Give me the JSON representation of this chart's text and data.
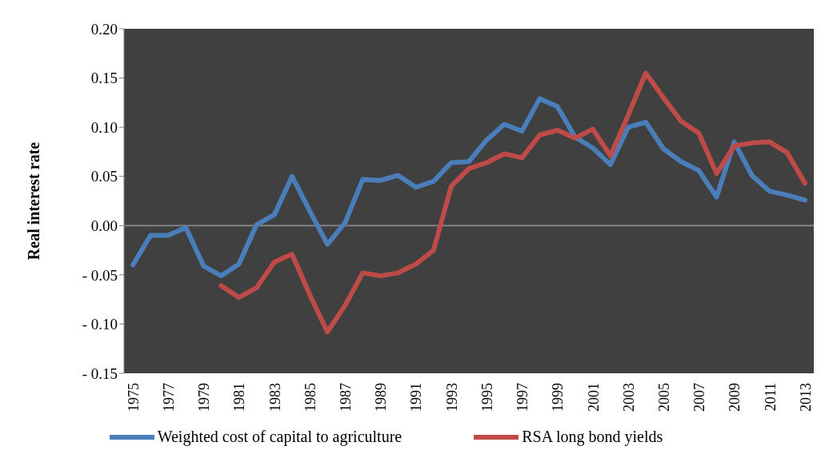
{
  "chart_data": {
    "type": "line",
    "ylabel": "Real interest rate",
    "categories": [
      "1975",
      null,
      "1977",
      null,
      "1979",
      null,
      "1981",
      null,
      "1983",
      null,
      "1985",
      null,
      "1987",
      null,
      "1989",
      null,
      "1991",
      null,
      "1993",
      null,
      "1995",
      null,
      "1997",
      null,
      "1999",
      null,
      "2001",
      null,
      "2003",
      null,
      "2005",
      null,
      "2007",
      null,
      "2009",
      null,
      "2011",
      null,
      "2013"
    ],
    "series": [
      {
        "name": "Weighted cost of capital to agriculture",
        "color": "#4a7ebb",
        "values": [
          -0.04,
          -0.01,
          -0.01,
          -0.002,
          -0.041,
          -0.051,
          -0.039,
          0.001,
          0.011,
          0.05,
          0.015,
          -0.019,
          0.003,
          0.047,
          0.046,
          0.051,
          0.039,
          0.045,
          0.064,
          0.065,
          0.087,
          0.103,
          0.096,
          0.129,
          0.121,
          0.09,
          0.079,
          0.062,
          0.1,
          0.105,
          0.078,
          0.065,
          0.056,
          0.029,
          0.085,
          0.051,
          0.035,
          0.031,
          0.026
        ]
      },
      {
        "name": "RSA long bond yields",
        "color": "#be4b48",
        "values": [
          null,
          null,
          null,
          null,
          null,
          -0.061,
          -0.073,
          -0.063,
          -0.037,
          -0.029,
          -0.07,
          -0.108,
          -0.081,
          -0.048,
          -0.051,
          -0.048,
          -0.039,
          -0.025,
          0.04,
          0.058,
          0.064,
          0.073,
          0.069,
          0.092,
          0.097,
          0.089,
          0.098,
          0.071,
          0.112,
          0.155,
          0.13,
          0.106,
          0.094,
          0.053,
          0.081,
          0.084,
          0.085,
          0.074,
          0.043
        ]
      }
    ],
    "ylim": [
      -0.15,
      0.2
    ],
    "yticks": [
      {
        "value": -0.15,
        "label": "- 0.15"
      },
      {
        "value": -0.1,
        "label": "- 0.10"
      },
      {
        "value": -0.05,
        "label": "- 0.05"
      },
      {
        "value": 0,
        "label": "0.00"
      },
      {
        "value": 0.05,
        "label": "0.05"
      },
      {
        "value": 0.1,
        "label": "0.10"
      },
      {
        "value": 0.15,
        "label": "0.15"
      },
      {
        "value": 0.2,
        "label": "0.20"
      }
    ],
    "legend": "bottom",
    "marker": "none",
    "line_style": "solid"
  }
}
